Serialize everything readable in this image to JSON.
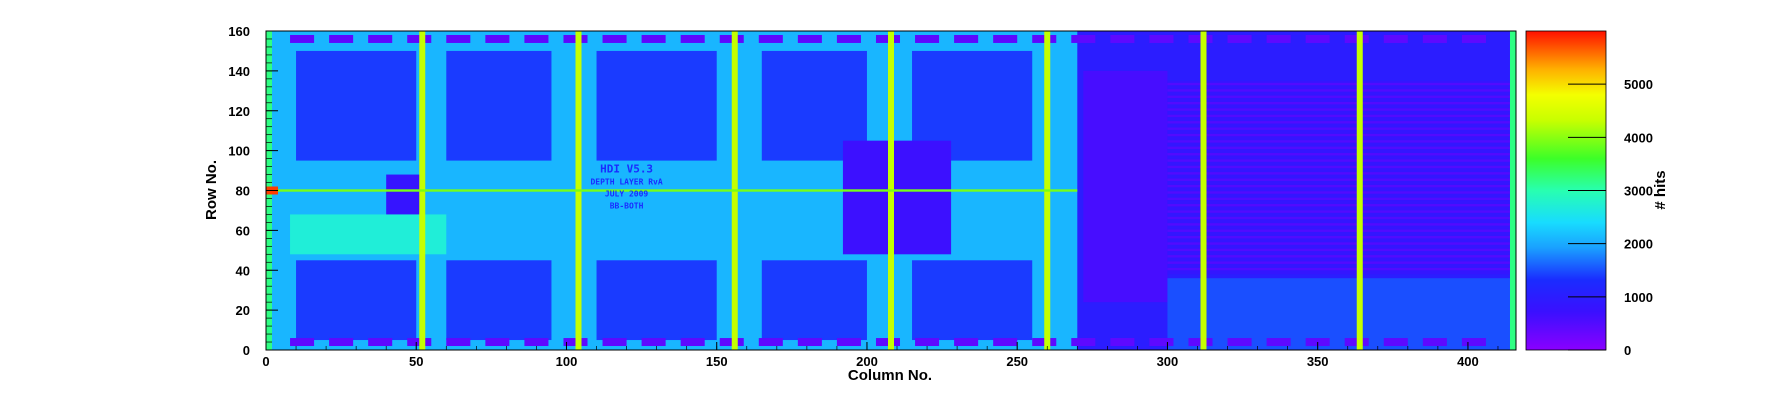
{
  "chart_data": {
    "type": "heatmap",
    "title": "",
    "xlabel": "Column No.",
    "ylabel": "Row No.",
    "zlabel": "# hits",
    "xlim": [
      0,
      416
    ],
    "ylim": [
      0,
      160
    ],
    "zlim": [
      0,
      6000
    ],
    "x_ticks": [
      0,
      50,
      100,
      150,
      200,
      250,
      300,
      350,
      400
    ],
    "y_ticks": [
      0,
      20,
      40,
      60,
      80,
      100,
      120,
      140,
      160
    ],
    "z_ticks": [
      0,
      1000,
      2000,
      3000,
      4000,
      5000
    ],
    "colormap": "rainbow (violet → blue → cyan → green → yellow → red)",
    "background_level_left": 2100,
    "background_level_right": 1000,
    "hot_columns": [
      52,
      104,
      156,
      208,
      260,
      312,
      364
    ],
    "hot_row": 80,
    "chip_label_lines": [
      "HDI V5.3",
      "DEPTH LAYER RvA",
      "JULY 2009",
      "BB-BOTH"
    ],
    "notes": "Hit map of pixel sensor; bright stripes every 52 columns and along row 80; left region (~col 0–270) shows metal-layout shadows at ~2000 hits, right region (~col 270–416) ~500–1500 hits."
  },
  "colors": {
    "violet": "#8a00ff",
    "blue": "#1a2cff",
    "cyan": "#18dcff",
    "green": "#3cff28",
    "yellow": "#f4ff00",
    "red": "#ff1000"
  }
}
